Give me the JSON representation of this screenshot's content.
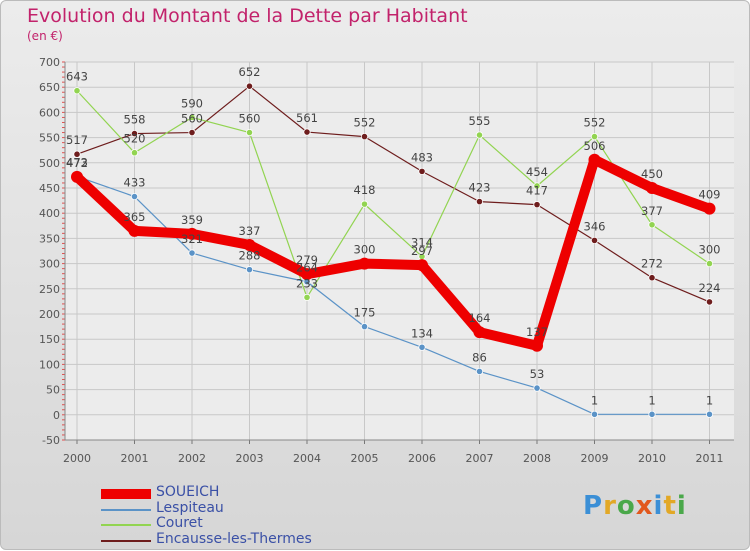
{
  "title": "Evolution du Montant de la Dette par Habitant",
  "subtitle": "(en €)",
  "logo": {
    "text": "Proxiti"
  },
  "colors": {
    "title": "#c2226b",
    "soueich": "#ee0000",
    "lespiteau": "#5b93c7",
    "couret": "#92d451",
    "encausse": "#6e1d1d"
  },
  "chart_data": {
    "type": "line",
    "x": [
      "2000",
      "2001",
      "2002",
      "2003",
      "2004",
      "2005",
      "2006",
      "2007",
      "2008",
      "2009",
      "2010",
      "2011"
    ],
    "ylim": [
      -50,
      700
    ],
    "yticks": [
      "-50",
      "0",
      "50",
      "100",
      "150",
      "200",
      "250",
      "300",
      "350",
      "400",
      "450",
      "500",
      "550",
      "600",
      "650",
      "700"
    ],
    "grid": true,
    "legend_position": "bottom",
    "series": [
      {
        "name": "SOUEICH",
        "color": "#ee0000",
        "values": [
          472,
          365,
          359,
          337,
          279,
          300,
          297,
          164,
          137,
          506,
          450,
          409
        ],
        "labels": [
          "472",
          "365",
          "359",
          "337",
          "279",
          "300",
          "297",
          "164",
          "137",
          "506",
          "450",
          "409"
        ]
      },
      {
        "name": "Lespiteau",
        "color": "#5b93c7",
        "values": [
          473,
          433,
          321,
          288,
          264,
          175,
          134,
          86,
          53,
          1,
          1,
          1
        ],
        "labels": [
          "473",
          "433",
          "321",
          "288",
          "264",
          "175",
          "134",
          "86",
          "53",
          "1",
          "1",
          "1"
        ]
      },
      {
        "name": "Couret",
        "color": "#92d451",
        "values": [
          643,
          520,
          590,
          560,
          233,
          418,
          314,
          555,
          454,
          552,
          377,
          300
        ],
        "labels": [
          "643",
          "520",
          "590",
          "560",
          "233",
          "418",
          "314",
          "555",
          "454",
          "552",
          "377",
          "300"
        ]
      },
      {
        "name": "Encausse-les-Thermes",
        "color": "#6e1d1d",
        "values": [
          517,
          558,
          560,
          652,
          561,
          552,
          483,
          423,
          417,
          346,
          272,
          224
        ],
        "labels": [
          "517",
          "558",
          "560",
          "652",
          "561",
          "552",
          "483",
          "423",
          "417",
          "346",
          "272",
          "224"
        ]
      }
    ]
  }
}
